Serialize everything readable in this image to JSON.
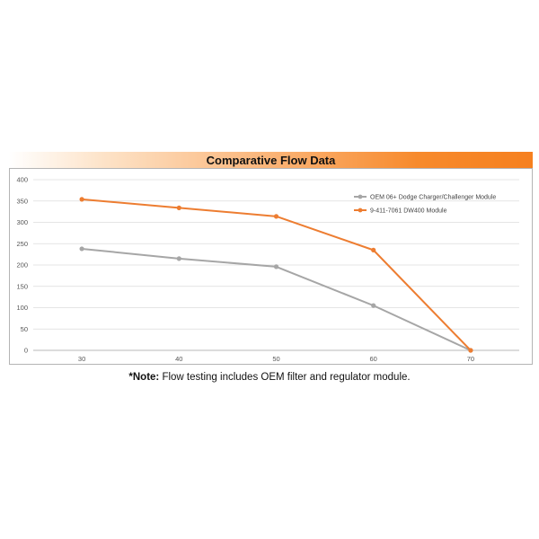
{
  "chart_data": {
    "type": "line",
    "title": "Comparative Flow Data",
    "xlabel": "",
    "ylabel": "",
    "x": [
      30,
      40,
      50,
      60,
      70
    ],
    "ylim": [
      0,
      400
    ],
    "yticks": [
      0,
      50,
      100,
      150,
      200,
      250,
      300,
      350,
      400
    ],
    "grid": true,
    "legend_position": "top-right",
    "series": [
      {
        "name": "OEM 06+ Dodge Charger/Challenger Module",
        "color": "#a6a6a6",
        "values": [
          238,
          215,
          196,
          105,
          0
        ]
      },
      {
        "name": "9-411-7061 DW400 Module",
        "color": "#ed7d31",
        "values": [
          354,
          334,
          314,
          235,
          0
        ]
      }
    ]
  },
  "note": {
    "prefix": "*Note:",
    "text": " Flow testing includes OEM filter and regulator module."
  }
}
